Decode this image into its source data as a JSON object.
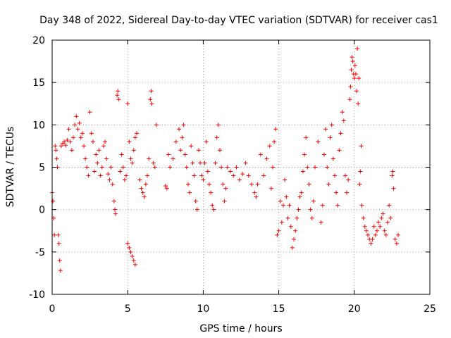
{
  "chart_data": {
    "type": "scatter",
    "title": "Day 348 of 2022, Sidereal Day-to-day VTEC variation (SDTVAR) for receiver cas1",
    "xlabel": "GPS time / hours",
    "ylabel": "SDTVAR / TECUs",
    "xlim": [
      0,
      25
    ],
    "ylim": [
      -10,
      20
    ],
    "xticks": [
      0,
      5,
      10,
      15,
      20,
      25
    ],
    "yticks": [
      -10,
      -5,
      0,
      5,
      10,
      15,
      20
    ],
    "grid": true,
    "marker": "+",
    "color": "#ff0000",
    "series": [
      {
        "name": "SDTVAR",
        "points": [
          [
            0.0,
            2.0
          ],
          [
            0.05,
            1.0
          ],
          [
            0.1,
            -1.0
          ],
          [
            0.15,
            -3.0
          ],
          [
            0.2,
            7.5
          ],
          [
            0.25,
            7.0
          ],
          [
            0.3,
            6.0
          ],
          [
            0.35,
            5.0
          ],
          [
            0.4,
            -3.0
          ],
          [
            0.45,
            -4.0
          ],
          [
            0.5,
            -6.0
          ],
          [
            0.55,
            -7.2
          ],
          [
            0.6,
            7.5
          ],
          [
            0.7,
            7.8
          ],
          [
            0.8,
            8.0
          ],
          [
            0.9,
            7.6
          ],
          [
            1.0,
            8.2
          ],
          [
            1.1,
            9.5
          ],
          [
            1.2,
            8.0
          ],
          [
            1.3,
            7.0
          ],
          [
            1.4,
            8.5
          ],
          [
            1.5,
            10.0
          ],
          [
            1.6,
            11.0
          ],
          [
            1.7,
            9.5
          ],
          [
            1.8,
            10.2
          ],
          [
            1.9,
            8.5
          ],
          [
            2.0,
            9.0
          ],
          [
            2.1,
            7.5
          ],
          [
            2.2,
            6.0
          ],
          [
            2.3,
            5.0
          ],
          [
            2.4,
            4.0
          ],
          [
            2.5,
            11.5
          ],
          [
            2.6,
            9.0
          ],
          [
            2.7,
            8.0
          ],
          [
            2.8,
            4.5
          ],
          [
            2.9,
            6.5
          ],
          [
            3.0,
            5.5
          ],
          [
            3.1,
            7.0
          ],
          [
            3.2,
            4.0
          ],
          [
            3.3,
            5.0
          ],
          [
            3.4,
            7.5
          ],
          [
            3.5,
            8.0
          ],
          [
            3.6,
            6.0
          ],
          [
            3.7,
            4.2
          ],
          [
            3.8,
            3.5
          ],
          [
            3.9,
            5.0
          ],
          [
            4.0,
            3.0
          ],
          [
            4.1,
            1.0
          ],
          [
            4.15,
            0.0
          ],
          [
            4.2,
            -0.5
          ],
          [
            4.3,
            13.5
          ],
          [
            4.35,
            14.0
          ],
          [
            4.4,
            13.0
          ],
          [
            4.5,
            4.5
          ],
          [
            4.6,
            6.5
          ],
          [
            4.7,
            5.0
          ],
          [
            4.8,
            3.5
          ],
          [
            4.9,
            4.0
          ],
          [
            5.0,
            -4.0
          ],
          [
            5.1,
            -4.5
          ],
          [
            5.2,
            -5.0
          ],
          [
            5.3,
            -5.5
          ],
          [
            5.4,
            -6.0
          ],
          [
            5.5,
            -6.5
          ],
          [
            5.0,
            12.5
          ],
          [
            5.1,
            8.0
          ],
          [
            5.2,
            6.0
          ],
          [
            5.3,
            5.5
          ],
          [
            5.4,
            7.0
          ],
          [
            5.5,
            8.5
          ],
          [
            5.6,
            9.0
          ],
          [
            5.8,
            3.5
          ],
          [
            5.9,
            2.5
          ],
          [
            6.0,
            2.0
          ],
          [
            6.1,
            1.5
          ],
          [
            6.2,
            3.0
          ],
          [
            6.3,
            4.0
          ],
          [
            6.4,
            6.0
          ],
          [
            6.5,
            13.0
          ],
          [
            6.55,
            14.0
          ],
          [
            6.6,
            12.5
          ],
          [
            6.7,
            5.5
          ],
          [
            6.8,
            5.0
          ],
          [
            6.9,
            10.0
          ],
          [
            7.5,
            2.8
          ],
          [
            7.6,
            2.5
          ],
          [
            7.7,
            6.5
          ],
          [
            7.8,
            5.0
          ],
          [
            8.0,
            6.0
          ],
          [
            8.2,
            8.0
          ],
          [
            8.4,
            9.5
          ],
          [
            8.5,
            7.0
          ],
          [
            8.6,
            8.5
          ],
          [
            8.7,
            10.0
          ],
          [
            8.8,
            6.5
          ],
          [
            8.9,
            5.0
          ],
          [
            9.0,
            3.0
          ],
          [
            9.1,
            2.0
          ],
          [
            9.2,
            7.5
          ],
          [
            9.3,
            5.5
          ],
          [
            9.4,
            4.0
          ],
          [
            9.5,
            1.0
          ],
          [
            9.6,
            0.0
          ],
          [
            9.7,
            7.0
          ],
          [
            9.8,
            5.5
          ],
          [
            9.9,
            4.0
          ],
          [
            10.0,
            3.5
          ],
          [
            10.1,
            5.5
          ],
          [
            10.2,
            8.0
          ],
          [
            10.3,
            4.5
          ],
          [
            10.4,
            3.0
          ],
          [
            10.5,
            2.0
          ],
          [
            10.6,
            0.5
          ],
          [
            10.7,
            0.0
          ],
          [
            10.8,
            5.5
          ],
          [
            10.9,
            8.5
          ],
          [
            11.0,
            10.0
          ],
          [
            11.1,
            7.0
          ],
          [
            11.2,
            5.0
          ],
          [
            11.3,
            3.0
          ],
          [
            11.4,
            1.0
          ],
          [
            11.5,
            2.5
          ],
          [
            11.6,
            5.0
          ],
          [
            11.8,
            4.5
          ],
          [
            12.0,
            4.0
          ],
          [
            12.2,
            5.0
          ],
          [
            12.4,
            3.5
          ],
          [
            12.6,
            4.2
          ],
          [
            12.8,
            5.5
          ],
          [
            13.0,
            4.0
          ],
          [
            13.2,
            3.0
          ],
          [
            13.4,
            2.0
          ],
          [
            13.5,
            1.5
          ],
          [
            13.6,
            3.0
          ],
          [
            13.8,
            6.5
          ],
          [
            14.0,
            4.0
          ],
          [
            14.2,
            6.0
          ],
          [
            14.4,
            7.5
          ],
          [
            14.5,
            2.5
          ],
          [
            14.6,
            5.0
          ],
          [
            14.7,
            8.0
          ],
          [
            14.8,
            9.5
          ],
          [
            14.9,
            -3.0
          ],
          [
            15.0,
            -2.5
          ],
          [
            15.1,
            1.0
          ],
          [
            15.2,
            -1.5
          ],
          [
            15.3,
            0.5
          ],
          [
            15.4,
            3.5
          ],
          [
            15.5,
            1.5
          ],
          [
            15.6,
            -1.0
          ],
          [
            15.7,
            0.5
          ],
          [
            15.8,
            -2.0
          ],
          [
            15.9,
            -4.5
          ],
          [
            16.0,
            -3.5
          ],
          [
            16.1,
            -2.5
          ],
          [
            16.2,
            -1.0
          ],
          [
            16.3,
            0.0
          ],
          [
            16.4,
            1.5
          ],
          [
            16.5,
            2.0
          ],
          [
            16.6,
            4.5
          ],
          [
            16.7,
            6.5
          ],
          [
            16.8,
            8.5
          ],
          [
            16.9,
            5.0
          ],
          [
            17.0,
            3.0
          ],
          [
            17.1,
            0.0
          ],
          [
            17.2,
            -1.0
          ],
          [
            17.3,
            1.0
          ],
          [
            17.4,
            5.0
          ],
          [
            17.6,
            8.0
          ],
          [
            17.8,
            -1.5
          ],
          [
            17.9,
            0.5
          ],
          [
            18.0,
            6.5
          ],
          [
            18.1,
            9.5
          ],
          [
            18.2,
            5.0
          ],
          [
            18.3,
            3.0
          ],
          [
            18.4,
            8.5
          ],
          [
            18.5,
            10.0
          ],
          [
            18.6,
            6.0
          ],
          [
            18.7,
            4.0
          ],
          [
            18.8,
            2.0
          ],
          [
            18.9,
            0.5
          ],
          [
            19.0,
            7.0
          ],
          [
            19.1,
            9.0
          ],
          [
            19.2,
            11.5
          ],
          [
            19.3,
            10.5
          ],
          [
            19.4,
            4.0
          ],
          [
            19.5,
            2.0
          ],
          [
            19.6,
            3.5
          ],
          [
            19.7,
            13.0
          ],
          [
            19.75,
            14.5
          ],
          [
            19.8,
            16.5
          ],
          [
            19.85,
            18.0
          ],
          [
            19.9,
            17.5
          ],
          [
            19.95,
            16.0
          ],
          [
            20.0,
            15.5
          ],
          [
            20.05,
            17.0
          ],
          [
            20.1,
            16.0
          ],
          [
            20.15,
            14.0
          ],
          [
            20.2,
            19.0
          ],
          [
            20.25,
            12.5
          ],
          [
            20.3,
            15.5
          ],
          [
            20.35,
            3.0
          ],
          [
            20.4,
            4.5
          ],
          [
            20.45,
            7.5
          ],
          [
            20.5,
            0.5
          ],
          [
            20.6,
            -1.0
          ],
          [
            20.7,
            -2.0
          ],
          [
            20.8,
            -2.5
          ],
          [
            20.9,
            -3.0
          ],
          [
            21.0,
            -3.5
          ],
          [
            21.1,
            -4.0
          ],
          [
            21.2,
            -3.5
          ],
          [
            21.3,
            -2.0
          ],
          [
            21.4,
            -3.0
          ],
          [
            21.5,
            -2.5
          ],
          [
            21.6,
            -1.5
          ],
          [
            21.7,
            -2.0
          ],
          [
            21.8,
            -1.0
          ],
          [
            21.9,
            -0.5
          ],
          [
            22.0,
            -2.5
          ],
          [
            22.1,
            -3.0
          ],
          [
            22.2,
            -1.5
          ],
          [
            22.3,
            0.5
          ],
          [
            22.4,
            -1.0
          ],
          [
            22.5,
            4.0
          ],
          [
            22.55,
            4.5
          ],
          [
            22.6,
            2.5
          ],
          [
            22.7,
            -3.5
          ],
          [
            22.8,
            -4.0
          ],
          [
            22.9,
            -3.0
          ]
        ]
      }
    ]
  }
}
